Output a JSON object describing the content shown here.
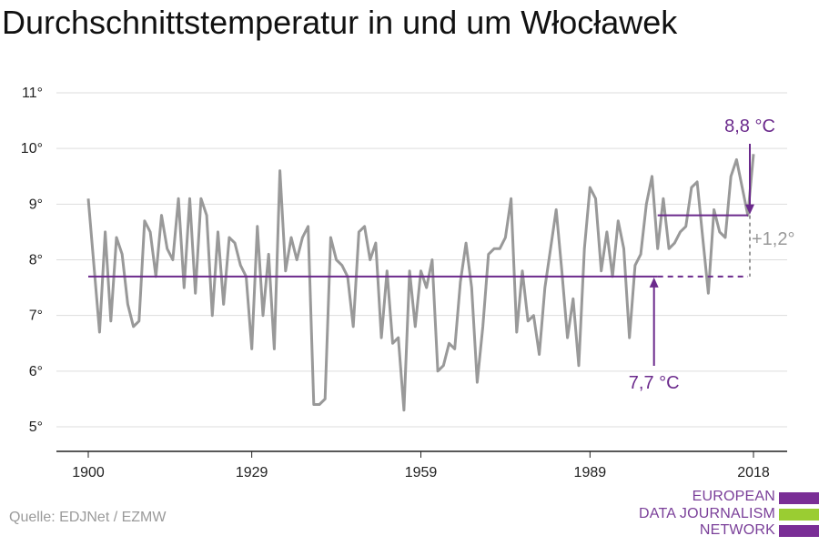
{
  "title": "Durchschnittstemperatur in und um Włocławek",
  "source": "Quelle: EDJNet / EZMW",
  "logo": {
    "lines": [
      "EUROPEAN",
      "DATA JOURNALISM",
      "NETWORK"
    ],
    "colors": [
      "#7a2e96",
      "#9acd32",
      "#7a2e96"
    ]
  },
  "colors": {
    "series": "#999999",
    "baseline": "#6b2a8c",
    "annotation": "#6b2a8c",
    "difference": "#999999",
    "grid": "#dddddd",
    "axis": "#222222"
  },
  "chart_data": {
    "type": "line",
    "title": "Durchschnittstemperatur in und um Włocławek",
    "xlabel": "",
    "ylabel": "",
    "xlim": [
      1900,
      2018
    ],
    "ylim": [
      5,
      11
    ],
    "x_ticks": [
      1900,
      1929,
      1959,
      1989,
      2018
    ],
    "x_tick_labels": [
      "1900",
      "1929",
      "1959",
      "1989",
      "2018"
    ],
    "y_ticks": [
      5,
      6,
      7,
      8,
      9,
      10,
      11
    ],
    "y_tick_labels": [
      "5°",
      "6°",
      "7°",
      "8°",
      "9°",
      "10°",
      "11°"
    ],
    "grid": true,
    "series": [
      {
        "x": [
          1900,
          1901,
          1902,
          1903,
          1904,
          1905,
          1906,
          1907,
          1908,
          1909,
          1910,
          1911,
          1912,
          1913,
          1914,
          1915,
          1916,
          1917,
          1918,
          1919,
          1920,
          1921,
          1922,
          1923,
          1924,
          1925,
          1926,
          1927,
          1928,
          1929,
          1930,
          1931,
          1932,
          1933,
          1934,
          1935,
          1936,
          1937,
          1938,
          1939,
          1940,
          1941,
          1942,
          1943,
          1944,
          1945,
          1946,
          1947,
          1948,
          1949,
          1950,
          1951,
          1952,
          1953,
          1954,
          1955,
          1956,
          1957,
          1958,
          1959,
          1960,
          1961,
          1962,
          1963,
          1964,
          1965,
          1966,
          1967,
          1968,
          1969,
          1970,
          1971,
          1972,
          1973,
          1974,
          1975,
          1976,
          1977,
          1978,
          1979,
          1980,
          1981,
          1982,
          1983,
          1984,
          1985,
          1986,
          1987,
          1988,
          1989,
          1990,
          1991,
          1992,
          1993,
          1994,
          1995,
          1996,
          1997,
          1998,
          1999,
          2000,
          2001,
          2002,
          2003,
          2004,
          2005,
          2006,
          2007,
          2008,
          2009,
          2010,
          2011,
          2012,
          2013,
          2014,
          2015,
          2016,
          2017,
          2018
        ],
        "values": [
          9.1,
          7.9,
          6.7,
          8.5,
          6.9,
          8.4,
          8.1,
          7.2,
          6.8,
          6.9,
          8.7,
          8.5,
          7.7,
          8.8,
          8.2,
          8.0,
          9.1,
          7.5,
          9.1,
          7.4,
          9.1,
          8.8,
          7.0,
          8.5,
          7.2,
          8.4,
          8.3,
          7.9,
          7.7,
          6.4,
          8.6,
          7.0,
          8.1,
          6.4,
          9.6,
          7.8,
          8.4,
          8.0,
          8.4,
          8.6,
          5.4,
          5.4,
          5.5,
          8.4,
          8.0,
          7.9,
          7.7,
          6.8,
          8.5,
          8.6,
          8.0,
          8.3,
          6.6,
          7.8,
          6.5,
          6.6,
          5.3,
          7.8,
          6.8,
          7.8,
          7.5,
          8.0,
          6.0,
          6.1,
          6.5,
          6.4,
          7.6,
          8.3,
          7.5,
          5.8,
          6.8,
          8.1,
          8.2,
          8.2,
          8.4,
          9.1,
          6.7,
          7.8,
          6.9,
          7.0,
          6.3,
          7.5,
          8.2,
          8.9,
          7.8,
          6.6,
          7.3,
          6.1,
          8.2,
          9.3,
          9.1,
          7.8,
          8.5,
          7.7,
          8.7,
          8.2,
          6.6,
          7.9,
          8.1,
          9.0,
          9.5,
          8.2,
          9.1,
          8.2,
          8.3,
          8.5,
          8.6,
          9.3,
          9.4,
          8.4,
          7.4,
          8.9,
          8.5,
          8.4,
          9.5,
          9.8,
          9.3,
          8.8,
          9.9
        ]
      }
    ],
    "annotations": {
      "baseline": {
        "value": 7.7,
        "label": "7,7 °C",
        "from": 1900,
        "to": 2018,
        "dashed_from": 2001
      },
      "recent": {
        "value": 8.8,
        "label": "8,8 °C",
        "from": 2001,
        "to": 2018
      },
      "difference_label": "+1,2°"
    }
  }
}
